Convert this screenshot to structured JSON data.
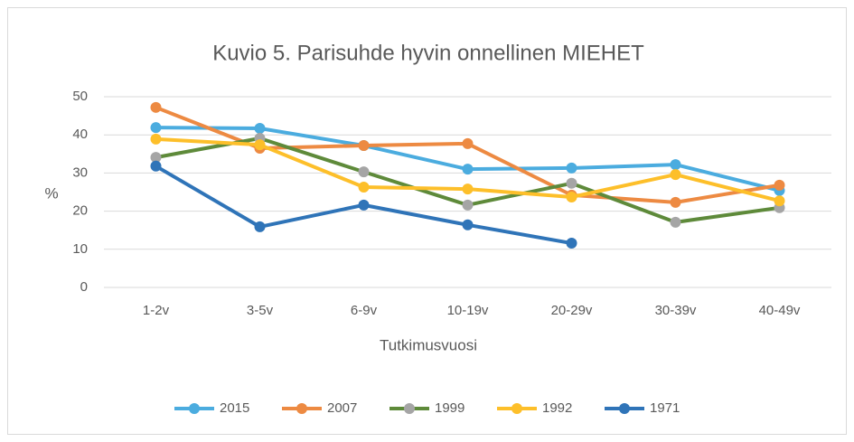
{
  "chart_data": {
    "type": "line",
    "title": "Kuvio 5. Parisuhde hyvin onnellinen MIEHET",
    "y_label": "%",
    "x_label": "Tutkimusvuosi",
    "categories": [
      "1-2v",
      "3-5v",
      "6-9v",
      "10-19v",
      "20-29v",
      "30-39v",
      "40-49v"
    ],
    "series": [
      {
        "name": "2015",
        "color": "#4bacdf",
        "marker_color": "#4bacdf",
        "values": [
          41.9,
          41.7,
          37.2,
          31.0,
          31.3,
          32.2,
          25.4
        ]
      },
      {
        "name": "2007",
        "color": "#ed8a42",
        "marker_color": "#ed8a42",
        "values": [
          47.2,
          36.5,
          37.2,
          37.7,
          24.2,
          22.3,
          26.8
        ]
      },
      {
        "name": "1999",
        "color": "#5e8a3a",
        "marker_color": "#a5a5a5",
        "values": [
          34.1,
          39.1,
          30.3,
          21.6,
          27.3,
          17.1,
          20.9
        ]
      },
      {
        "name": "1992",
        "color": "#fdbf2a",
        "marker_color": "#fdbf2a",
        "values": [
          38.9,
          37.4,
          26.3,
          25.8,
          23.7,
          29.6,
          22.7
        ]
      },
      {
        "name": "1971",
        "color": "#2f74b8",
        "marker_color": "#2f74b8",
        "values": [
          31.8,
          15.9,
          21.6,
          16.4,
          11.6,
          null,
          null
        ]
      }
    ],
    "ylim": [
      0,
      50
    ],
    "yticks": [
      0,
      10,
      20,
      30,
      40,
      50
    ],
    "grid": true,
    "legend": "bottom"
  }
}
